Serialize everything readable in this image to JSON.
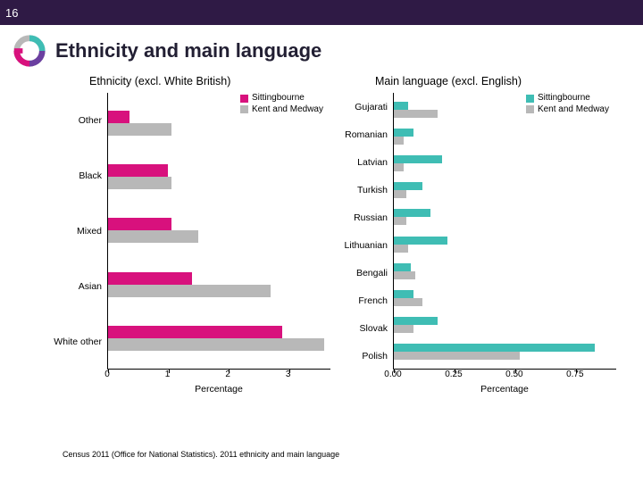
{
  "page_number": "16",
  "title": "Ethnicity and main language",
  "footnote": "Census 2011 (Office for National Statistics). 2011 ethnicity and main language",
  "colors": {
    "series1": "#d8117d",
    "series2": "#b8b8b8",
    "series1_alt": "#3fbdb4",
    "header_bg": "#2f1a45",
    "axis": "#000000",
    "text": "#000000"
  },
  "legend": {
    "series1_label": "Sittingbourne",
    "series2_label": "Kent and Medway"
  },
  "chart_left": {
    "title": "Ethnicity (excl. White British)",
    "x_label": "Percentage",
    "x_ticks": [
      "0",
      "1",
      "2",
      "3"
    ],
    "x_max": 3.7,
    "categories": [
      {
        "label": "Other",
        "v1": 0.35,
        "v2": 1.05
      },
      {
        "label": "Black",
        "v1": 1.0,
        "v2": 1.05
      },
      {
        "label": "Mixed",
        "v1": 1.05,
        "v2": 1.5
      },
      {
        "label": "Asian",
        "v1": 1.4,
        "v2": 2.7
      },
      {
        "label": "White other",
        "v1": 2.9,
        "v2": 3.6
      }
    ]
  },
  "chart_right": {
    "title": "Main language (excl. English)",
    "x_label": "Percentage",
    "x_ticks": [
      "0.00",
      "0.25",
      "0.50",
      "0.75"
    ],
    "x_max": 0.92,
    "categories": [
      {
        "label": "Gujarati",
        "v1": 0.06,
        "v2": 0.18
      },
      {
        "label": "Romanian",
        "v1": 0.08,
        "v2": 0.04
      },
      {
        "label": "Latvian",
        "v1": 0.2,
        "v2": 0.04
      },
      {
        "label": "Turkish",
        "v1": 0.12,
        "v2": 0.05
      },
      {
        "label": "Russian",
        "v1": 0.15,
        "v2": 0.05
      },
      {
        "label": "Lithuanian",
        "v1": 0.22,
        "v2": 0.06
      },
      {
        "label": "Bengali",
        "v1": 0.07,
        "v2": 0.09
      },
      {
        "label": "French",
        "v1": 0.08,
        "v2": 0.12
      },
      {
        "label": "Slovak",
        "v1": 0.18,
        "v2": 0.08
      },
      {
        "label": "Polish",
        "v1": 0.83,
        "v2": 0.52
      }
    ]
  }
}
